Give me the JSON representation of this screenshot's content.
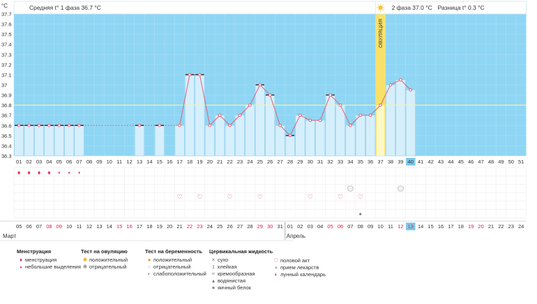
{
  "colors": {
    "plot_bg": "#8fd6f4",
    "bar_fill": "#d6effc",
    "bar_stroke": "#8ccbe8",
    "line": "#e0607a",
    "coverline": "#f2f2b0",
    "ovulation": "#f7e16a",
    "highlight": "#7cc9ea",
    "weekend": "#e0204a",
    "text": "#333333"
  },
  "header": {
    "unit": "°C",
    "phase1_label": "Средняя t° 1 фаза 36.7 °C",
    "phase2_label": "2 фаза 37.0 °C",
    "diff_label": "Разница t° 0.3 °C",
    "ovulation_label": "ОВУЛЯЦИЯ"
  },
  "chart_data": {
    "type": "line",
    "title": "",
    "ylabel": "°C",
    "ylim": [
      36.3,
      37.7
    ],
    "yticks": [
      "37.7",
      "37.6",
      "37.5",
      "37.4",
      "37.3",
      "37.2",
      "37.1",
      "37",
      "36.9",
      "36.8",
      "36.7",
      "36.6",
      "36.5",
      "36.4",
      "36.3"
    ],
    "cycle_days": [
      "01",
      "02",
      "03",
      "04",
      "05",
      "06",
      "07",
      "08",
      "09",
      "10",
      "11",
      "12",
      "13",
      "14",
      "15",
      "16",
      "17",
      "18",
      "19",
      "20",
      "21",
      "22",
      "23",
      "24",
      "25",
      "26",
      "27",
      "28",
      "29",
      "30",
      "31",
      "32",
      "33",
      "34",
      "35",
      "36",
      "37",
      "38",
      "39",
      "40",
      "41",
      "42",
      "43",
      "44",
      "45",
      "46",
      "47",
      "48",
      "49",
      "50",
      "51"
    ],
    "temperatures": [
      36.6,
      36.6,
      36.6,
      36.6,
      36.6,
      36.6,
      36.6,
      null,
      null,
      null,
      null,
      null,
      36.6,
      null,
      36.6,
      null,
      36.6,
      37.1,
      37.1,
      36.6,
      36.7,
      36.6,
      36.7,
      36.8,
      37.0,
      36.9,
      36.6,
      36.5,
      36.7,
      36.65,
      36.65,
      36.9,
      36.8,
      36.6,
      36.7,
      36.7,
      36.8,
      37.0,
      37.05,
      36.95,
      null,
      null,
      null,
      null,
      null,
      null,
      null,
      null,
      null,
      null,
      null
    ],
    "marked_days": [
      1,
      2,
      3,
      4,
      5,
      6,
      7,
      13,
      15,
      18,
      19,
      25,
      26,
      28,
      32
    ],
    "coverline": 36.8,
    "ovulation_day": 37,
    "current_day": 40,
    "dates": [
      "05",
      "06",
      "07",
      "08",
      "09",
      "10",
      "11",
      "12",
      "13",
      "14",
      "15",
      "16",
      "17",
      "18",
      "19",
      "20",
      "21",
      "22",
      "23",
      "24",
      "25",
      "26",
      "27",
      "28",
      "29",
      "30",
      "31",
      "01",
      "02",
      "03",
      "04",
      "05",
      "06",
      "07",
      "08",
      "09",
      "10",
      "11",
      "12",
      "13",
      "14",
      "15",
      "16",
      "17",
      "18",
      "19",
      "20",
      "21",
      "22",
      "23",
      "24"
    ],
    "weekend_dates": [
      4,
      5,
      11,
      12,
      18,
      19,
      25,
      26,
      32,
      33,
      39,
      40,
      46,
      47
    ],
    "month_labels": [
      {
        "day": 1,
        "label": "Март"
      },
      {
        "day": 28,
        "label": "Апрель"
      }
    ],
    "phase2_days": [
      37,
      38,
      39,
      40,
      41,
      42,
      43,
      44,
      45,
      46,
      47,
      48,
      49,
      50,
      51
    ]
  },
  "markers": {
    "menstruation": [
      1,
      2,
      3,
      4
    ],
    "light_discharge": [
      5,
      6,
      7
    ],
    "intercourse": [
      17,
      19,
      22,
      25,
      30,
      33,
      35
    ],
    "pregnancy_negative": [
      34,
      39
    ],
    "egg_white": [
      35
    ]
  },
  "legend": {
    "menstruation": {
      "title": "Менструация",
      "items": [
        {
          "icon": "drop-icon",
          "label": "менструация"
        },
        {
          "icon": "small-drop-icon",
          "label": "небольшие выделения"
        }
      ]
    },
    "ovulation_test": {
      "title": "Тест на овуляцию",
      "items": [
        {
          "icon": "sun-icon",
          "label": "положительный"
        },
        {
          "icon": "gray-sun-icon",
          "label": "отрицательный"
        }
      ]
    },
    "pregnancy_test": {
      "title": "Тест на беременность",
      "items": [
        {
          "icon": "orange-circle-icon",
          "label": "положительный"
        },
        {
          "icon": "white-circle-icon",
          "label": "отрицательный"
        },
        {
          "icon": "half-circle-icon",
          "label": "слабоположительный"
        }
      ]
    },
    "cervical_fluid": {
      "title": "Цервикальная жидкость",
      "items": [
        {
          "icon": "x-icon",
          "label": "сухо"
        },
        {
          "icon": "sticky-icon",
          "label": "клейкая"
        },
        {
          "icon": "creamy-icon",
          "label": "кремообразная"
        },
        {
          "icon": "watery-icon",
          "label": "водянистая"
        },
        {
          "icon": "egg-icon",
          "label": "яичный белок"
        }
      ]
    },
    "other": {
      "title": "",
      "items": [
        {
          "icon": "heart-icon",
          "label": "половой акт"
        },
        {
          "icon": "pill-icon",
          "label": "прием лекарств"
        },
        {
          "icon": "moon-icon",
          "label": "лунный календарь"
        }
      ]
    }
  }
}
